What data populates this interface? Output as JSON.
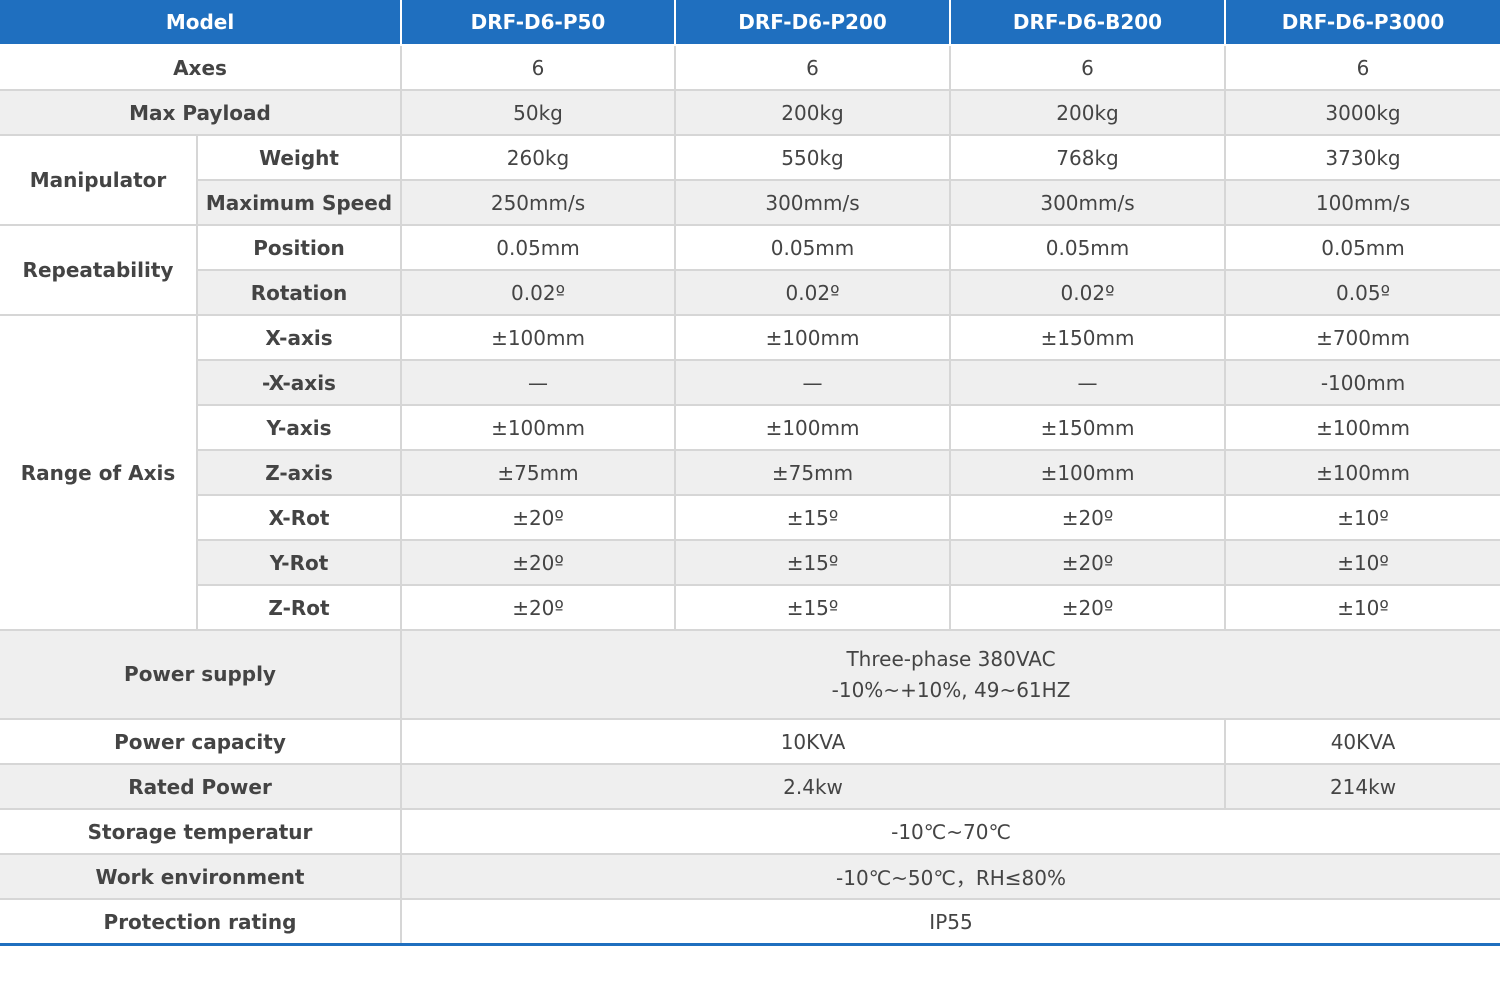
{
  "header": {
    "model_label": "Model",
    "models": [
      "DRF-D6-P50",
      "DRF-D6-P200",
      "DRF-D6-B200",
      "DRF-D6-P3000"
    ]
  },
  "rows": {
    "axes": {
      "label": "Axes",
      "values": [
        "6",
        "6",
        "6",
        "6"
      ]
    },
    "max_payload": {
      "label": "Max Payload",
      "values": [
        "50kg",
        "200kg",
        "200kg",
        "3000kg"
      ]
    },
    "manipulator": {
      "label": "Manipulator",
      "weight": {
        "label": "Weight",
        "values": [
          "260kg",
          "550kg",
          "768kg",
          "3730kg"
        ]
      },
      "max_speed": {
        "label": "Maximum Speed",
        "values": [
          "250mm/s",
          "300mm/s",
          "300mm/s",
          "100mm/s"
        ]
      }
    },
    "repeatability": {
      "label": "Repeatability",
      "position": {
        "label": "Position",
        "values": [
          "0.05mm",
          "0.05mm",
          "0.05mm",
          "0.05mm"
        ]
      },
      "rotation": {
        "label": "Rotation",
        "values": [
          "0.02º",
          "0.02º",
          "0.02º",
          "0.05º"
        ]
      }
    },
    "range_of_axis": {
      "label": "Range of Axis",
      "x_axis": {
        "label": "X-axis",
        "values": [
          "±100mm",
          "±100mm",
          "±150mm",
          "±700mm"
        ]
      },
      "neg_x_axis": {
        "label": "-X-axis",
        "values": [
          "—",
          "—",
          "—",
          "-100mm"
        ]
      },
      "y_axis": {
        "label": "Y-axis",
        "values": [
          "±100mm",
          "±100mm",
          "±150mm",
          "±100mm"
        ]
      },
      "z_axis": {
        "label": "Z-axis",
        "values": [
          "±75mm",
          "±75mm",
          "±100mm",
          "±100mm"
        ]
      },
      "x_rot": {
        "label": "X-Rot",
        "values": [
          "±20º",
          "±15º",
          "±20º",
          "±10º"
        ]
      },
      "y_rot": {
        "label": "Y-Rot",
        "values": [
          "±20º",
          "±15º",
          "±20º",
          "±10º"
        ]
      },
      "z_rot": {
        "label": "Z-Rot",
        "values": [
          "±20º",
          "±15º",
          "±20º",
          "±10º"
        ]
      }
    },
    "power_supply": {
      "label": "Power supply",
      "line1": "Three-phase 380VAC",
      "line2": "-10%~+10%, 49~61HZ"
    },
    "power_capacity": {
      "label": "Power capacity",
      "value_shared": "10KVA",
      "value_last": "40KVA"
    },
    "rated_power": {
      "label": "Rated Power",
      "value_shared": "2.4kw",
      "value_last": "214kw"
    },
    "storage_temperature": {
      "label": "Storage temperatur",
      "value": "-10℃~70℃"
    },
    "work_environment": {
      "label": "Work environment",
      "value": "-10℃~50℃，RH≤80%"
    },
    "protection_rating": {
      "label": "Protection rating",
      "value": "IP55"
    }
  },
  "colors": {
    "header_bg": "#1f6fbf",
    "alt_row_bg": "#efefef",
    "border": "#d6d6d6"
  }
}
